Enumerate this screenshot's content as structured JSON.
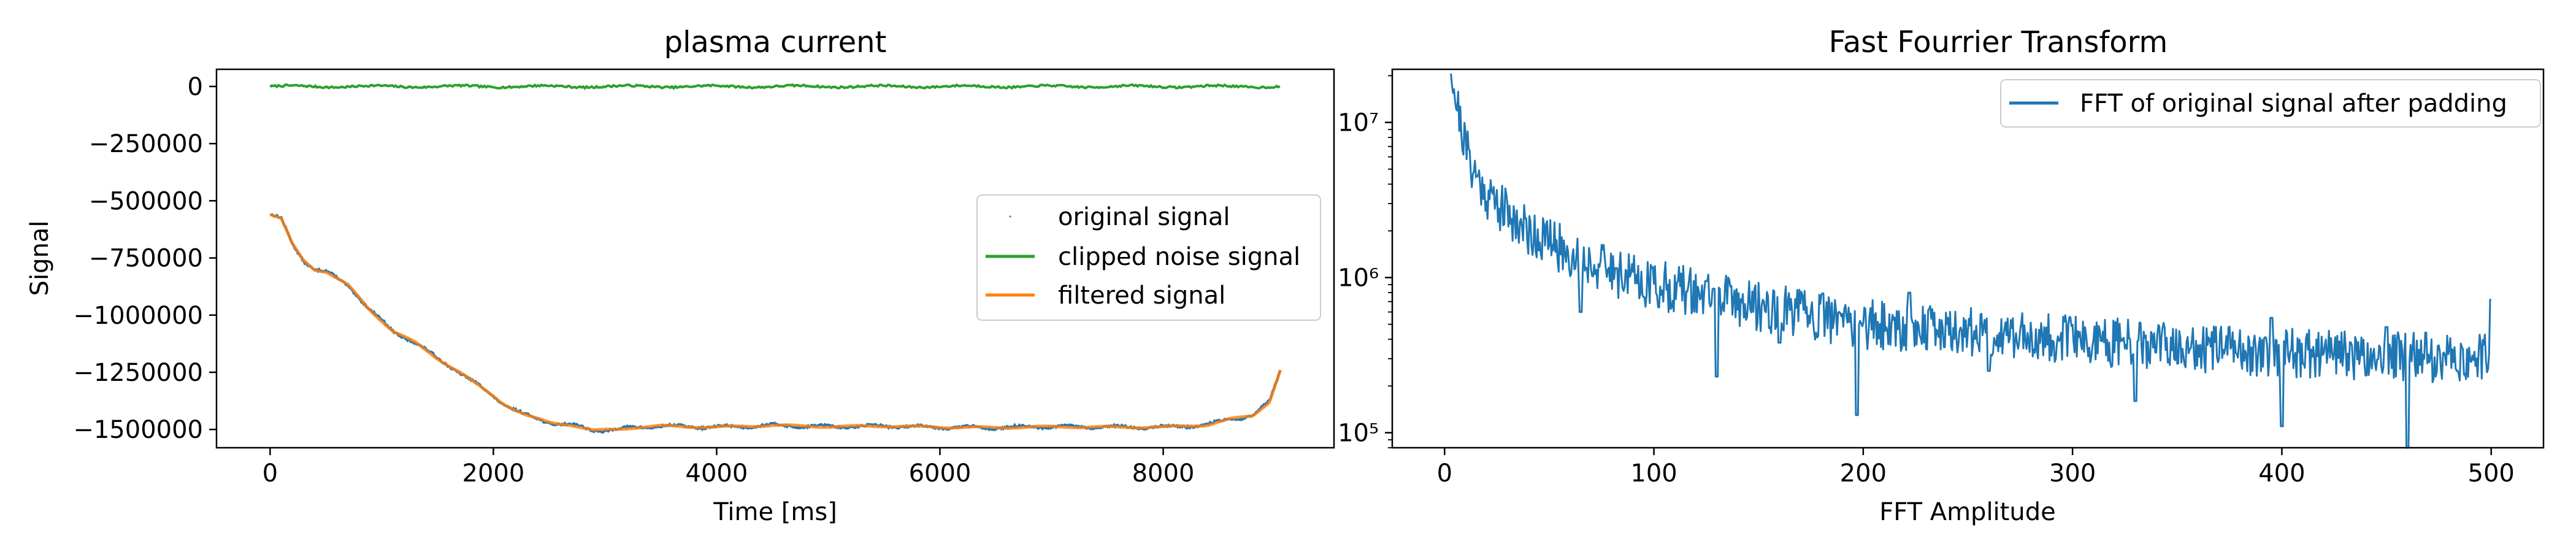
{
  "chart_data": [
    {
      "type": "line",
      "title": "plasma current",
      "xlabel": "Time [ms]",
      "ylabel": "Signal",
      "xlim": [
        -480,
        9530
      ],
      "ylim": [
        -1580000,
        75000
      ],
      "xticks": [
        0,
        2000,
        4000,
        6000,
        8000
      ],
      "xtick_labels": [
        "0",
        "2000",
        "4000",
        "6000",
        "8000"
      ],
      "yticks": [
        0,
        -250000,
        -500000,
        -750000,
        -1000000,
        -1250000,
        -1500000
      ],
      "ytick_labels": [
        "0",
        "−250000",
        "−500000",
        "−750000",
        "−1000000",
        "−1250000",
        "−1500000"
      ],
      "legend_position": "center-right",
      "series": [
        {
          "name": "original signal",
          "style": "points",
          "color": "#1f77b4",
          "x": [
            0,
            100,
            200,
            300,
            400,
            500,
            700,
            900,
            1100,
            1300,
            1500,
            1700,
            1900,
            2100,
            2300,
            2500,
            2700,
            2900,
            3100,
            3300,
            3500,
            4000,
            4500,
            5000,
            5500,
            6000,
            6500,
            7000,
            7500,
            8000,
            8400,
            8600,
            8800,
            8950,
            9050
          ],
          "y": [
            -560000,
            -580000,
            -690000,
            -760000,
            -800000,
            -810000,
            -870000,
            -980000,
            -1070000,
            -1120000,
            -1190000,
            -1250000,
            -1320000,
            -1390000,
            -1440000,
            -1470000,
            -1480000,
            -1505000,
            -1500000,
            -1490000,
            -1485000,
            -1490000,
            -1482000,
            -1488000,
            -1485000,
            -1490000,
            -1492000,
            -1488000,
            -1490000,
            -1490000,
            -1480000,
            -1455000,
            -1440000,
            -1380000,
            -1240000
          ]
        },
        {
          "name": "clipped noise signal",
          "style": "noise",
          "color": "#2ca02c",
          "x_range": [
            0,
            9050
          ],
          "level": 0,
          "amplitude": 8000
        },
        {
          "name": "filtered signal",
          "style": "line",
          "color": "#ff7f0e",
          "x": [
            0,
            100,
            200,
            300,
            400,
            500,
            700,
            900,
            1100,
            1300,
            1500,
            1700,
            1900,
            2100,
            2300,
            2500,
            2700,
            2900,
            3100,
            3300,
            3500,
            4000,
            4500,
            5000,
            5500,
            6000,
            6500,
            7000,
            7500,
            8000,
            8400,
            8600,
            8800,
            8950,
            9050
          ],
          "y": [
            -560000,
            -580000,
            -690000,
            -760000,
            -800000,
            -810000,
            -870000,
            -980000,
            -1070000,
            -1120000,
            -1190000,
            -1250000,
            -1320000,
            -1390000,
            -1440000,
            -1470000,
            -1480000,
            -1505000,
            -1500000,
            -1490000,
            -1485000,
            -1490000,
            -1482000,
            -1488000,
            -1485000,
            -1490000,
            -1492000,
            -1488000,
            -1490000,
            -1490000,
            -1480000,
            -1455000,
            -1440000,
            -1380000,
            -1240000
          ]
        }
      ]
    },
    {
      "type": "line",
      "title": "Fast Fourrier Transform",
      "xlabel": "FFT Amplitude",
      "ylabel": "",
      "yscale": "log",
      "xlim": [
        -25,
        525
      ],
      "ylim": [
        80000,
        22000000
      ],
      "xticks": [
        0,
        100,
        200,
        300,
        400,
        500
      ],
      "xtick_labels": [
        "0",
        "100",
        "200",
        "300",
        "400",
        "500"
      ],
      "yticks": [
        100000,
        1000000,
        10000000
      ],
      "ytick_labels": [
        "10⁵",
        "10⁶",
        "10⁷"
      ],
      "legend_position": "top-right",
      "series": [
        {
          "name": "FFT of original signal after padding",
          "color": "#1f77b4",
          "x": [
            3,
            5,
            10,
            15,
            20,
            30,
            40,
            50,
            60,
            70,
            80,
            100,
            120,
            150,
            200,
            250,
            300,
            350,
            400,
            450,
            500
          ],
          "y": [
            25000000,
            15000000,
            7000000,
            4500000,
            3500000,
            2600000,
            2000000,
            1700000,
            1400000,
            1250000,
            1100000,
            900000,
            800000,
            650000,
            500000,
            450000,
            400000,
            350000,
            330000,
            310000,
            300000
          ],
          "dips": [
            [
              65,
              600000
            ],
            [
              130,
              230000
            ],
            [
              160,
              380000
            ],
            [
              197,
              130000
            ],
            [
              260,
              250000
            ],
            [
              330,
              160000
            ],
            [
              400,
              110000
            ],
            [
              460,
              70000
            ],
            [
              500,
              150000
            ]
          ],
          "spikes": [
            [
              82,
              1150000
            ],
            [
              125,
              950000
            ],
            [
              222,
              800000
            ],
            [
              395,
              550000
            ],
            [
              450,
              480000
            ],
            [
              500,
              720000
            ]
          ]
        }
      ]
    }
  ]
}
